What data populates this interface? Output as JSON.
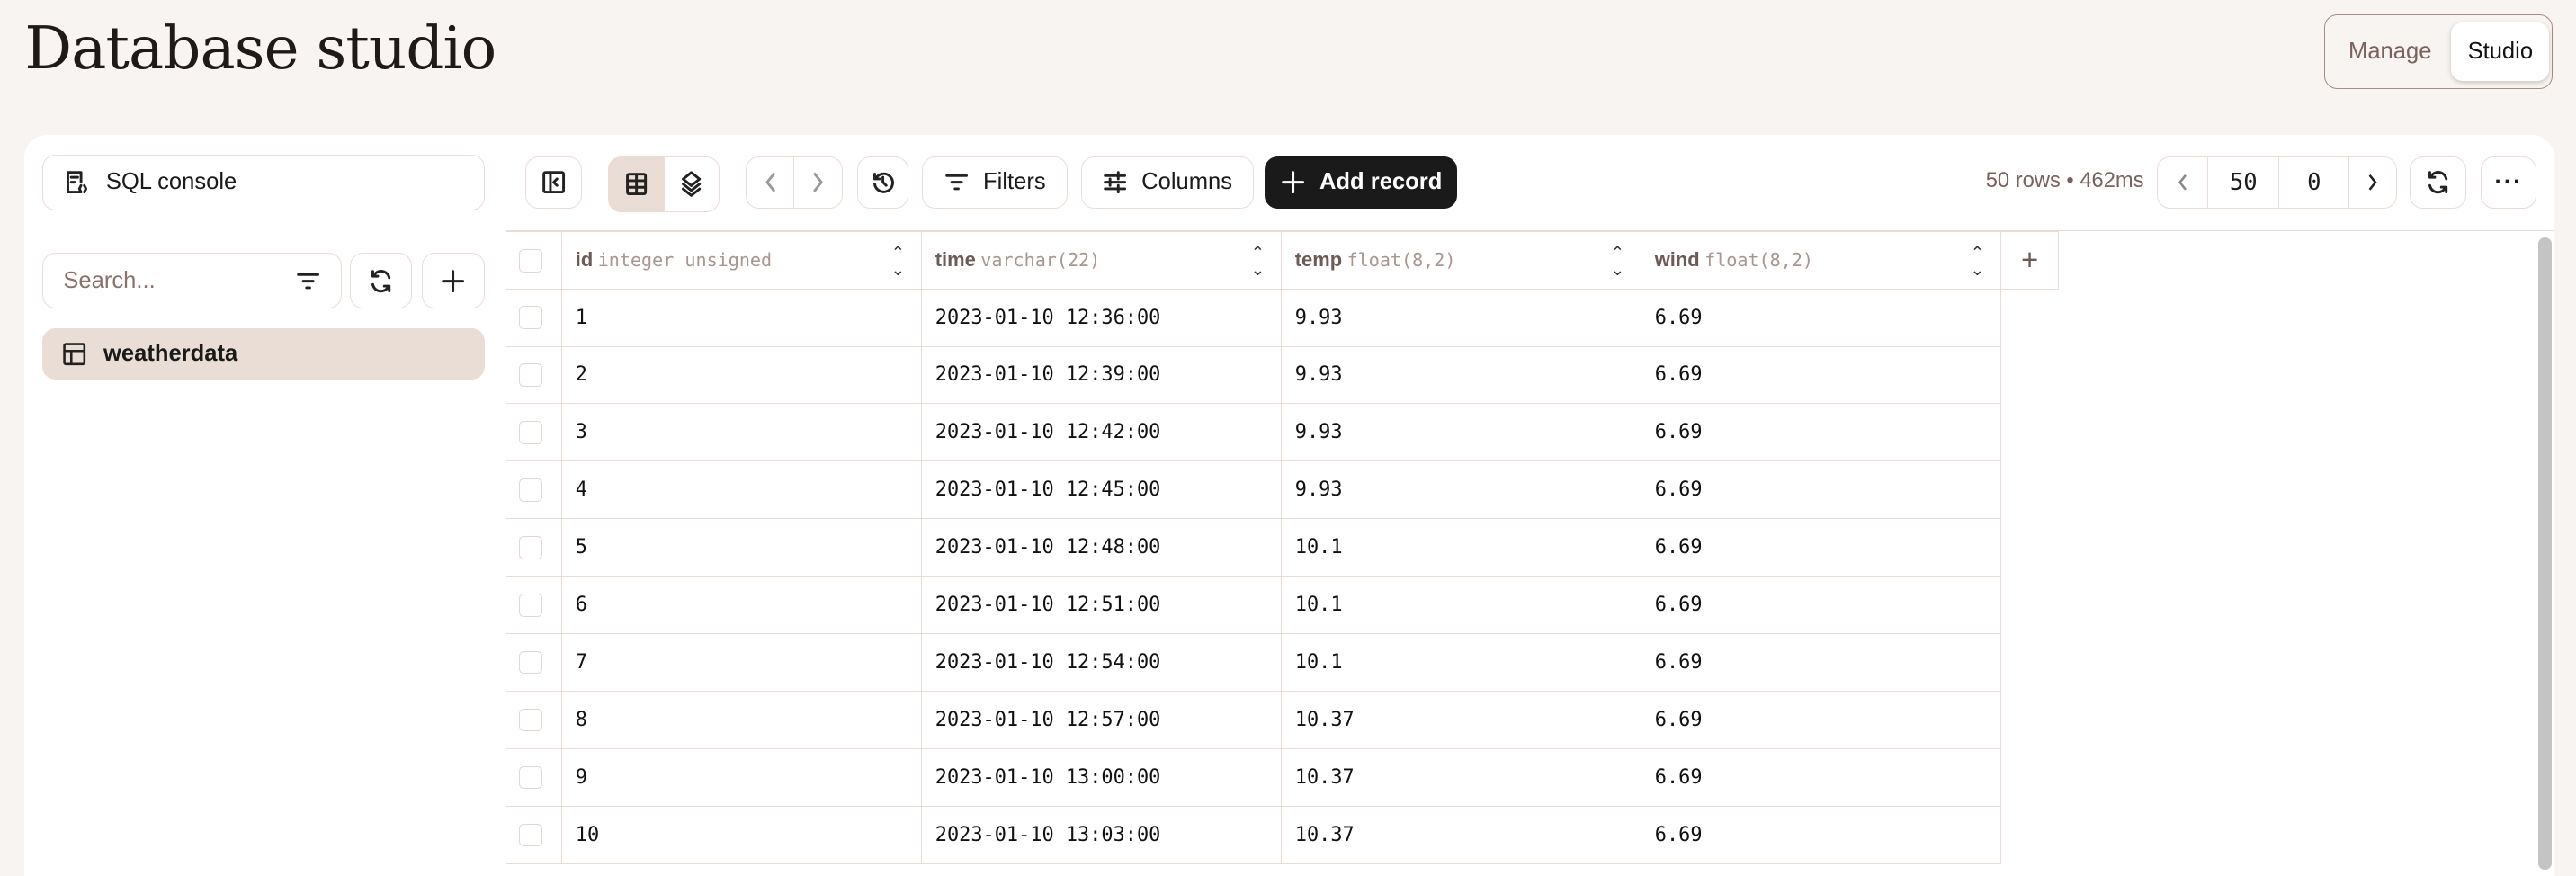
{
  "header": {
    "title": "Database studio",
    "modes": [
      {
        "label": "Manage",
        "active": false
      },
      {
        "label": "Studio",
        "active": true
      }
    ]
  },
  "sidebar": {
    "sql_console": "SQL console",
    "search_placeholder": "Search...",
    "tables": [
      {
        "label": "weatherdata",
        "selected": true
      }
    ]
  },
  "toolbar": {
    "filters": "Filters",
    "columns": "Columns",
    "add_record": "Add record",
    "view_mode": "table",
    "status": "50 rows • 462ms",
    "limit": "50",
    "offset": "0"
  },
  "table": {
    "columns": [
      {
        "name": "id",
        "type": "integer unsigned"
      },
      {
        "name": "time",
        "type": "varchar(22)"
      },
      {
        "name": "temp",
        "type": "float(8,2)"
      },
      {
        "name": "wind",
        "type": "float(8,2)"
      }
    ],
    "rows": [
      [
        "1",
        "2023-01-10 12:36:00",
        "9.93",
        "6.69"
      ],
      [
        "2",
        "2023-01-10 12:39:00",
        "9.93",
        "6.69"
      ],
      [
        "3",
        "2023-01-10 12:42:00",
        "9.93",
        "6.69"
      ],
      [
        "4",
        "2023-01-10 12:45:00",
        "9.93",
        "6.69"
      ],
      [
        "5",
        "2023-01-10 12:48:00",
        "10.1",
        "6.69"
      ],
      [
        "6",
        "2023-01-10 12:51:00",
        "10.1",
        "6.69"
      ],
      [
        "7",
        "2023-01-10 12:54:00",
        "10.1",
        "6.69"
      ],
      [
        "8",
        "2023-01-10 12:57:00",
        "10.37",
        "6.69"
      ],
      [
        "9",
        "2023-01-10 13:00:00",
        "10.37",
        "6.69"
      ],
      [
        "10",
        "2023-01-10 13:03:00",
        "10.37",
        "6.69"
      ]
    ]
  },
  "colors": {
    "background": "#f8f4f1",
    "accent": "#e9ddd5",
    "border": "#eadcd5",
    "primary_button": "#1a1a1a"
  }
}
